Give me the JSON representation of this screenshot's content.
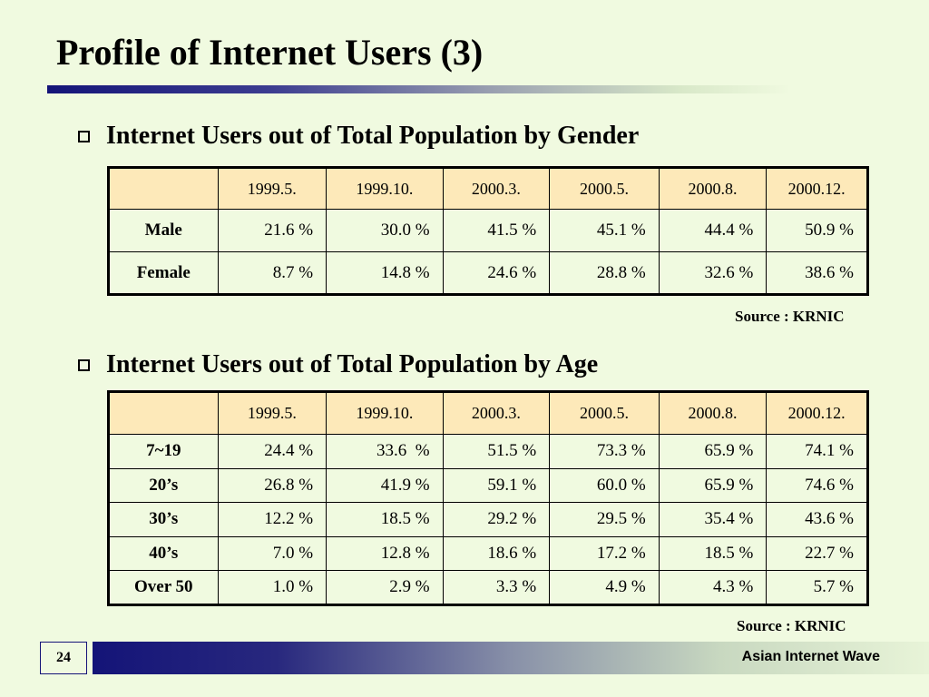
{
  "slide": {
    "title": "Profile of Internet Users (3)",
    "page_number": "24",
    "footer_text": "Asian Internet Wave"
  },
  "gender_section": {
    "heading": "Internet Users out of Total Population by Gender",
    "columns": [
      "",
      "1999.5.",
      "1999.10.",
      "2000.3.",
      "2000.5.",
      "2000.8.",
      "2000.12."
    ],
    "rows": [
      {
        "label": "Male",
        "values": [
          "21.6 %",
          "30.0 %",
          "41.5 %",
          "45.1 %",
          "44.4 %",
          "50.9 %"
        ]
      },
      {
        "label": "Female",
        "values": [
          "8.7 %",
          "14.8 %",
          "24.6 %",
          "28.8 %",
          "32.6 %",
          "38.6 %"
        ]
      }
    ],
    "source": "Source : KRNIC"
  },
  "age_section": {
    "heading": "Internet Users out of Total Population by Age",
    "columns": [
      "",
      "1999.5.",
      "1999.10.",
      "2000.3.",
      "2000.5.",
      "2000.8.",
      "2000.12."
    ],
    "rows": [
      {
        "label": "7~19",
        "values": [
          "24.4 %",
          "33.6  %",
          "51.5 %",
          "73.3 %",
          "65.9 %",
          "74.1 %"
        ]
      },
      {
        "label": "20’s",
        "values": [
          "26.8 %",
          "41.9 %",
          "59.1 %",
          "60.0 %",
          "65.9 %",
          "74.6 %"
        ]
      },
      {
        "label": "30’s",
        "values": [
          "12.2 %",
          "18.5 %",
          "29.2 %",
          "29.5 %",
          "35.4 %",
          "43.6 %"
        ]
      },
      {
        "label": "40’s",
        "values": [
          "7.0 %",
          "12.8 %",
          "18.6 %",
          "17.2 %",
          "18.5 %",
          "22.7 %"
        ]
      },
      {
        "label": "Over 50",
        "values": [
          "1.0 %",
          "2.9 %",
          "3.3 %",
          "4.9 %",
          "4.3 %",
          "5.7 %"
        ]
      }
    ],
    "source": "Source : KRNIC"
  },
  "colors": {
    "background": "#f0fae0",
    "header_fill": "#fde9b9",
    "accent_navy": "#141478"
  },
  "icons": {
    "bullet": "hollow-square-bullet-icon"
  }
}
